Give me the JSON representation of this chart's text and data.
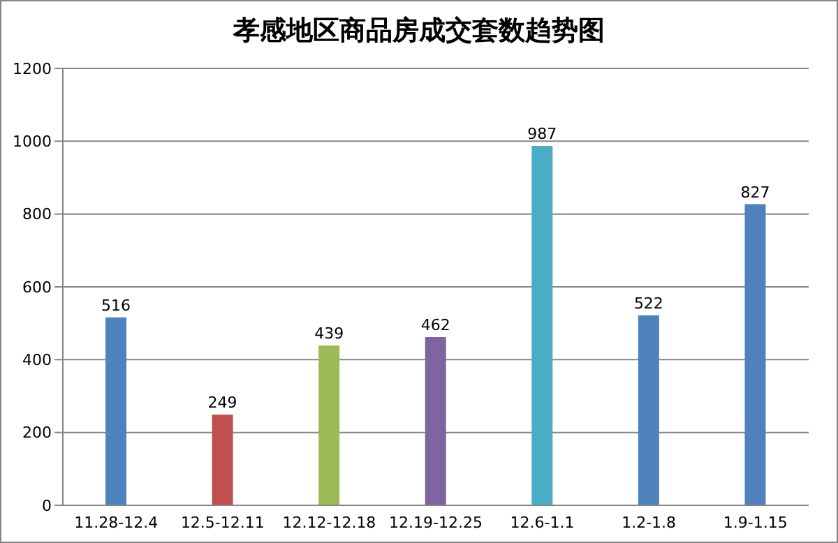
{
  "chart_data": {
    "type": "bar",
    "title": "孝感地区商品房成交套数趋势图",
    "categories": [
      "11.28-12.4",
      "12.5-12.11",
      "12.12-12.18",
      "12.19-12.25",
      "12.6-1.1",
      "1.2-1.8",
      "1.9-1.15"
    ],
    "values": [
      516,
      249,
      439,
      462,
      987,
      522,
      827
    ],
    "colors": [
      "#4f81bd",
      "#c0504d",
      "#9bbb59",
      "#8064a2",
      "#4bacc6",
      "#4f81bd",
      "#4f81bd"
    ],
    "ylim": [
      0,
      1200
    ],
    "yticks": [
      0,
      200,
      400,
      600,
      800,
      1000,
      1200
    ],
    "grid": "y",
    "data_labels": true,
    "legend": false
  }
}
